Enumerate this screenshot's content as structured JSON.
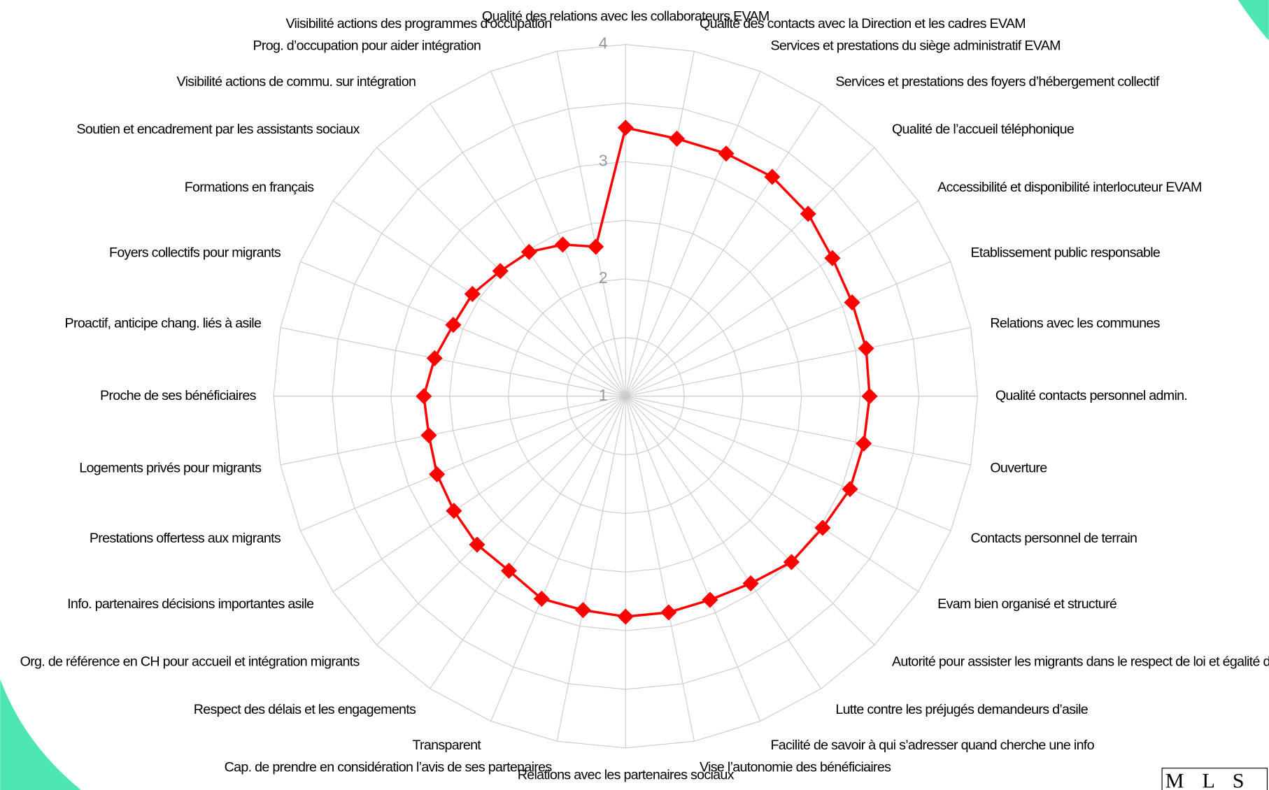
{
  "chart_data": {
    "type": "radar",
    "categories": [
      "Qualité des relations avec les collaborateurs EVAM",
      "Qualité des contacts avec la Direction et les cadres EVAM",
      "Services et prestations du siège administratif EVAM",
      "Services et prestations des foyers d’hébergement collectif",
      "Qualité de l’accueil téléphonique",
      "Accessibilité et disponibilité interlocuteur EVAM",
      "Etablissement public responsable",
      "Relations avec les communes",
      "Qualité contacts personnel admin.",
      "Ouverture",
      "Contacts personnel de terrain",
      "Evam bien organisé et structuré",
      "Autorité pour assister les migrants dans le respect de loi et égalité de traitement",
      "Lutte contre les préjugés demandeurs d’asile",
      "Facilité de savoir à qui s’adresser quand cherche une info",
      "Vise l’autonomie des bénéficiaires",
      "Relations avec les partenaires sociaux",
      "Cap. de prendre en considération l’avis de ses partenaires",
      "Transparent",
      "Respect des délais et les engagements",
      "Org. de référence en CH pour accueil et intégration migrants",
      "Info. partenaires décisions importantes asile",
      "Prestations offertess aux migrants",
      "Logements privés pour migrants",
      "Proche de ses bénéficiaires",
      "Proactif, anticipe chang. liés à asile",
      "Foyers collectifs pour migrants",
      "Formations en français",
      "Soutien et encadrement par les assistants sociaux",
      "Visibilité actions de commu. sur intégration",
      "Prog. d’occupation pour aider intégration",
      "Viisibilité actions des programmes d’occupation"
    ],
    "values": [
      3.29,
      3.24,
      3.24,
      3.25,
      3.2,
      3.12,
      3.09,
      3.09,
      3.08,
      3.07,
      3.07,
      3.02,
      3.0,
      2.92,
      2.88,
      2.88,
      2.88,
      2.86,
      2.87,
      2.79,
      2.79,
      2.76,
      2.74,
      2.71,
      2.72,
      2.66,
      2.59,
      2.57,
      2.51,
      2.48,
      2.4,
      2.3
    ],
    "color": "#ff0000",
    "ylim": [
      1,
      4
    ],
    "yticks": [
      1,
      2,
      3,
      4
    ],
    "grid": true
  },
  "logo": "M L S"
}
